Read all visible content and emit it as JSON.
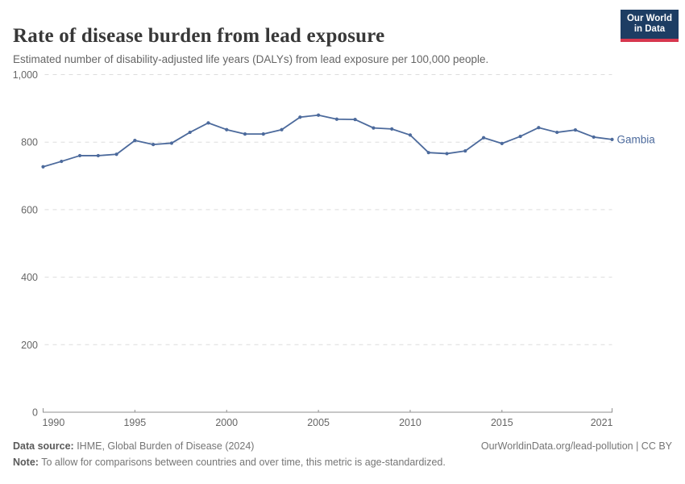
{
  "header": {
    "title": "Rate of disease burden from lead exposure",
    "subtitle": "Estimated number of disability-adjusted life years (DALYs) from lead exposure per 100,000 people.",
    "logo": {
      "line1": "Our World",
      "line2": "in Data",
      "bg_color": "#1d3d63",
      "bar_color": "#d7374e"
    }
  },
  "chart_data": {
    "type": "line",
    "title": "Rate of disease burden from lead exposure",
    "xlabel": "",
    "ylabel": "DALYs from lead exposure per 100,000 people",
    "x": [
      1990,
      1991,
      1992,
      1993,
      1994,
      1995,
      1996,
      1997,
      1998,
      1999,
      2000,
      2001,
      2002,
      2003,
      2004,
      2005,
      2006,
      2007,
      2008,
      2009,
      2010,
      2011,
      2012,
      2013,
      2014,
      2015,
      2016,
      2017,
      2018,
      2019,
      2020,
      2021
    ],
    "series": [
      {
        "name": "Gambia",
        "color": "#4C6A9C",
        "values": [
          727,
          743,
          760,
          760,
          764,
          805,
          793,
          797,
          829,
          857,
          837,
          824,
          824,
          837,
          874,
          880,
          868,
          867,
          842,
          839,
          821,
          769,
          766,
          774,
          813,
          796,
          817,
          843,
          829,
          836,
          815,
          808
        ]
      }
    ],
    "xlim": [
      1990,
      2021
    ],
    "ylim": [
      0,
      1000
    ],
    "xticks": [
      1990,
      1995,
      2000,
      2005,
      2010,
      2015,
      2021
    ],
    "yticks": [
      0,
      200,
      400,
      600,
      800,
      1000
    ],
    "ytick_labels": [
      "0",
      "200",
      "400",
      "600",
      "800",
      "1,000"
    ],
    "grid": "horizontal-dashed",
    "legend_position": "end-of-line-label",
    "colors": {
      "line": "#4C6A9C",
      "gridline": "#dddddd",
      "axis": "#8f8f8f",
      "tick_text": "#666666"
    }
  },
  "footer": {
    "datasource_label": "Data source:",
    "datasource_value": " IHME, Global Burden of Disease (2024)",
    "credit": "OurWorldinData.org/lead-pollution | CC BY",
    "note_label": "Note:",
    "note_value": " To allow for comparisons between countries and over time, this metric is age-standardized."
  }
}
